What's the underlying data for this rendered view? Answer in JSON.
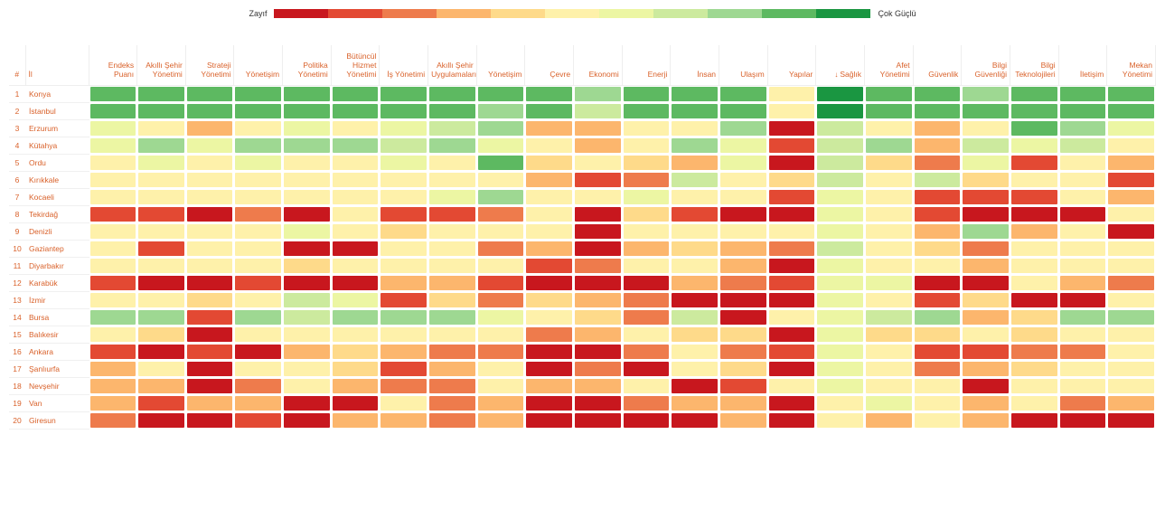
{
  "type": "heatmap",
  "legend": {
    "left_label": "Zayıf",
    "right_label": "Çok Güçlü",
    "colors": [
      "#c8171e",
      "#e34933",
      "#ee7b4c",
      "#fcb66d",
      "#feda8a",
      "#fef1aa",
      "#ecf6a3",
      "#ccea9e",
      "#9ed892",
      "#5db961",
      "#1a9641"
    ],
    "swatch_width": 60,
    "swatch_height": 10,
    "label_fontsize": 9
  },
  "header_color": "#d9612a",
  "cell_text_color": "#d9612a",
  "background_color": "#ffffff",
  "gridline_color": "#eeeeee",
  "header_fontsize": 8.5,
  "body_fontsize": 8.5,
  "columns": [
    {
      "key": "rank",
      "label": "#",
      "align": "center"
    },
    {
      "key": "il",
      "label": "İl",
      "align": "left"
    },
    {
      "key": "c0",
      "label": "Endeks Puanı"
    },
    {
      "key": "c1",
      "label": "Akıllı Şehir Yönetimi"
    },
    {
      "key": "c2",
      "label": "Strateji Yönetimi"
    },
    {
      "key": "c3",
      "label": "Yönetişim"
    },
    {
      "key": "c4",
      "label": "Politika Yönetimi"
    },
    {
      "key": "c5",
      "label": "Bütüncül Hizmet Yönetimi"
    },
    {
      "key": "c6",
      "label": "İş Yönetimi"
    },
    {
      "key": "c7",
      "label": "Akıllı Şehir Uygulamaları"
    },
    {
      "key": "c8",
      "label": "Yönetişim"
    },
    {
      "key": "c9",
      "label": "Çevre"
    },
    {
      "key": "c10",
      "label": "Ekonomi"
    },
    {
      "key": "c11",
      "label": "Enerji"
    },
    {
      "key": "c12",
      "label": "İnsan"
    },
    {
      "key": "c13",
      "label": "Ulaşım"
    },
    {
      "key": "c14",
      "label": "Yapılar"
    },
    {
      "key": "c15",
      "label": "Sağlık",
      "sorted": true
    },
    {
      "key": "c16",
      "label": "Afet Yönetimi"
    },
    {
      "key": "c17",
      "label": "Güvenlik"
    },
    {
      "key": "c18",
      "label": "Bilgi Güvenliği"
    },
    {
      "key": "c19",
      "label": "Bilgi Teknolojileri"
    },
    {
      "key": "c20",
      "label": "İletişim"
    },
    {
      "key": "c21",
      "label": "Mekan Yönetimi"
    }
  ],
  "rows": [
    {
      "rank": 1,
      "il": "Konya",
      "v": [
        9,
        9,
        9,
        9,
        9,
        9,
        9,
        9,
        9,
        9,
        8,
        9,
        9,
        9,
        5,
        10,
        9,
        9,
        8,
        9,
        9,
        9
      ]
    },
    {
      "rank": 2,
      "il": "İstanbul",
      "v": [
        9,
        9,
        9,
        9,
        9,
        9,
        9,
        9,
        8,
        9,
        7,
        9,
        9,
        9,
        5,
        10,
        9,
        9,
        9,
        9,
        9,
        9
      ]
    },
    {
      "rank": 3,
      "il": "Erzurum",
      "v": [
        6,
        5,
        3,
        5,
        6,
        5,
        6,
        7,
        8,
        3,
        3,
        5,
        5,
        8,
        0,
        7,
        5,
        3,
        5,
        9,
        8,
        6
      ]
    },
    {
      "rank": 4,
      "il": "Kütahya",
      "v": [
        6,
        8,
        6,
        8,
        8,
        8,
        7,
        8,
        6,
        5,
        3,
        5,
        8,
        6,
        1,
        7,
        8,
        3,
        7,
        6,
        7,
        5
      ]
    },
    {
      "rank": 5,
      "il": "Ordu",
      "v": [
        5,
        6,
        5,
        6,
        5,
        5,
        6,
        5,
        9,
        4,
        5,
        4,
        3,
        6,
        0,
        7,
        4,
        2,
        6,
        1,
        5,
        3
      ]
    },
    {
      "rank": 6,
      "il": "Kırıkkale",
      "v": [
        5,
        5,
        5,
        5,
        5,
        5,
        5,
        5,
        5,
        3,
        1,
        2,
        7,
        5,
        4,
        7,
        5,
        7,
        4,
        5,
        5,
        1
      ]
    },
    {
      "rank": 7,
      "il": "Kocaeli",
      "v": [
        5,
        5,
        5,
        5,
        5,
        5,
        5,
        6,
        8,
        5,
        5,
        6,
        5,
        5,
        1,
        6,
        5,
        1,
        1,
        1,
        5,
        3
      ]
    },
    {
      "rank": 8,
      "il": "Tekirdağ",
      "v": [
        1,
        1,
        0,
        2,
        0,
        5,
        1,
        1,
        2,
        5,
        0,
        4,
        1,
        0,
        0,
        6,
        5,
        1,
        0,
        0,
        0,
        5
      ]
    },
    {
      "rank": 9,
      "il": "Denizli",
      "v": [
        5,
        5,
        5,
        5,
        6,
        5,
        4,
        5,
        5,
        5,
        0,
        5,
        5,
        5,
        5,
        6,
        5,
        3,
        8,
        3,
        5,
        0
      ]
    },
    {
      "rank": 10,
      "il": "Gaziantep",
      "v": [
        5,
        1,
        5,
        5,
        0,
        0,
        5,
        5,
        2,
        3,
        0,
        3,
        4,
        3,
        2,
        7,
        5,
        4,
        2,
        5,
        5,
        5
      ]
    },
    {
      "rank": 11,
      "il": "Diyarbakır",
      "v": [
        5,
        5,
        5,
        5,
        4,
        5,
        5,
        5,
        5,
        1,
        2,
        5,
        5,
        3,
        0,
        6,
        5,
        5,
        3,
        5,
        5,
        5
      ]
    },
    {
      "rank": 12,
      "il": "Karabük",
      "v": [
        1,
        0,
        0,
        1,
        0,
        0,
        3,
        3,
        1,
        0,
        0,
        0,
        3,
        2,
        1,
        6,
        6,
        0,
        0,
        5,
        3,
        2
      ]
    },
    {
      "rank": 13,
      "il": "İzmir",
      "v": [
        5,
        5,
        4,
        5,
        7,
        6,
        1,
        4,
        2,
        4,
        3,
        2,
        0,
        0,
        0,
        6,
        5,
        1,
        4,
        0,
        0,
        5
      ]
    },
    {
      "rank": 14,
      "il": "Bursa",
      "v": [
        8,
        8,
        1,
        8,
        7,
        8,
        8,
        8,
        6,
        5,
        4,
        2,
        7,
        0,
        5,
        6,
        7,
        8,
        3,
        4,
        8,
        8
      ]
    },
    {
      "rank": 15,
      "il": "Balıkesir",
      "v": [
        5,
        4,
        0,
        5,
        5,
        5,
        5,
        5,
        5,
        2,
        3,
        5,
        4,
        4,
        0,
        6,
        4,
        4,
        5,
        4,
        5,
        5
      ]
    },
    {
      "rank": 16,
      "il": "Ankara",
      "v": [
        1,
        0,
        1,
        0,
        3,
        4,
        3,
        2,
        2,
        0,
        0,
        2,
        5,
        2,
        1,
        6,
        5,
        1,
        1,
        2,
        2,
        5
      ]
    },
    {
      "rank": 17,
      "il": "Şanlıurfa",
      "v": [
        3,
        5,
        0,
        5,
        5,
        4,
        1,
        3,
        5,
        0,
        2,
        0,
        5,
        4,
        0,
        6,
        5,
        2,
        3,
        4,
        5,
        5
      ]
    },
    {
      "rank": 18,
      "il": "Nevşehir",
      "v": [
        3,
        3,
        0,
        2,
        5,
        3,
        2,
        2,
        5,
        3,
        3,
        5,
        0,
        1,
        5,
        6,
        5,
        5,
        0,
        5,
        5,
        5
      ]
    },
    {
      "rank": 19,
      "il": "Van",
      "v": [
        3,
        1,
        3,
        3,
        0,
        0,
        5,
        2,
        3,
        0,
        0,
        2,
        3,
        3,
        0,
        5,
        6,
        5,
        3,
        5,
        2,
        3
      ]
    },
    {
      "rank": 20,
      "il": "Giresun",
      "v": [
        2,
        0,
        0,
        1,
        0,
        3,
        3,
        2,
        3,
        0,
        0,
        0,
        0,
        3,
        0,
        5,
        3,
        5,
        3,
        0,
        0,
        0
      ]
    }
  ],
  "value_range": [
    0,
    10
  ],
  "color_scale": [
    "#c8171e",
    "#e34933",
    "#ee7b4c",
    "#fcb66d",
    "#feda8a",
    "#fef1aa",
    "#ecf6a3",
    "#ccea9e",
    "#9ed892",
    "#5db961",
    "#1a9641"
  ]
}
